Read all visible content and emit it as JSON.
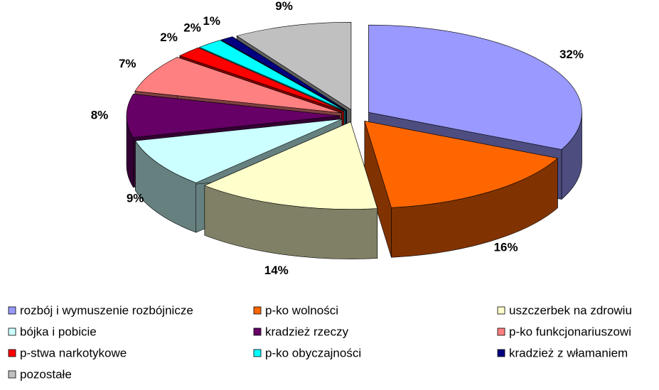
{
  "chart_data": {
    "type": "pie",
    "categories": [
      "rozbój i wymuszenie rozbójnicze",
      "p-ko wolności",
      "uszczerbek na zdrowiu",
      "bójka i pobicie",
      "kradzież rzeczy",
      "p-ko funkcjonariuszowi",
      "p-stwa narkotykowe",
      "p-ko obyczajności",
      "kradzież z włamaniem",
      "pozostałe"
    ],
    "values": [
      32,
      16,
      14,
      9,
      8,
      7,
      2,
      2,
      1,
      9
    ],
    "value_labels": [
      "32%",
      "16%",
      "14%",
      "9%",
      "8%",
      "7%",
      "2%",
      "2%",
      "1%",
      "9%"
    ],
    "colors": [
      "#9999ff",
      "#ff6600",
      "#ffffcc",
      "#ccffff",
      "#660066",
      "#ff8080",
      "#ff0000",
      "#00ffff",
      "#000080",
      "#c0c0c0"
    ],
    "legend": "bottom"
  }
}
